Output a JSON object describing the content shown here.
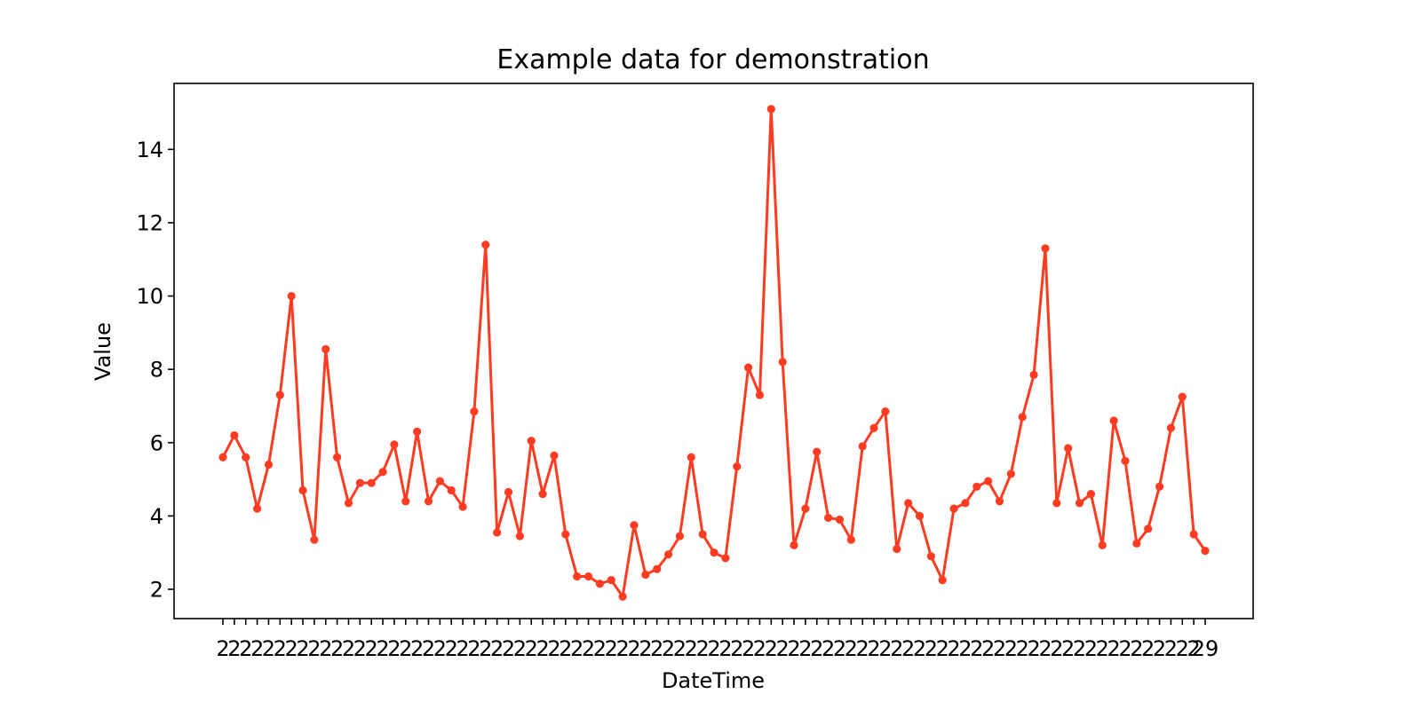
{
  "chart_data": {
    "type": "line",
    "title": "Example data for demonstration",
    "xlabel": "DateTime",
    "ylabel": "Value",
    "ylim": [
      1.2,
      15.8
    ],
    "yticks": [
      2,
      4,
      6,
      8,
      10,
      12,
      14
    ],
    "grid": false,
    "legend": "none",
    "series_color": "#ff3b22",
    "x": [
      "2",
      "2",
      "2",
      "2",
      "2",
      "2",
      "2",
      "2",
      "2",
      "2",
      "2",
      "2",
      "2",
      "2",
      "2",
      "2",
      "2",
      "2",
      "2",
      "2",
      "2",
      "2",
      "2",
      "2",
      "2",
      "2",
      "2",
      "2",
      "2",
      "2",
      "2",
      "2",
      "2",
      "2",
      "2",
      "2",
      "2",
      "2",
      "2",
      "2",
      "2",
      "2",
      "2",
      "2",
      "2",
      "2",
      "2",
      "2",
      "2",
      "2",
      "2",
      "2",
      "2",
      "2",
      "2",
      "2",
      "2",
      "2",
      "2",
      "2",
      "2",
      "2",
      "2",
      "2",
      "2",
      "2",
      "2",
      "2",
      "2",
      "2",
      "2",
      "2",
      "2",
      "2",
      "2",
      "2",
      "2",
      "2",
      "2",
      "2",
      "2",
      "2",
      "2",
      "2",
      "2",
      "2",
      "29"
    ],
    "values": [
      5.6,
      6.2,
      5.6,
      4.2,
      5.4,
      7.3,
      10.0,
      4.7,
      3.35,
      8.55,
      5.6,
      4.35,
      4.9,
      4.9,
      5.2,
      5.95,
      4.4,
      6.3,
      4.4,
      4.95,
      4.7,
      4.25,
      6.85,
      11.4,
      3.55,
      4.65,
      3.45,
      6.05,
      4.6,
      5.65,
      3.5,
      2.35,
      2.35,
      2.15,
      2.25,
      1.8,
      3.75,
      2.4,
      2.55,
      2.95,
      3.45,
      5.6,
      3.5,
      3.0,
      2.85,
      5.35,
      8.05,
      7.3,
      15.1,
      8.2,
      3.2,
      4.2,
      5.75,
      3.95,
      3.9,
      3.35,
      5.9,
      6.4,
      6.85,
      3.1,
      4.35,
      4.0,
      2.9,
      2.25,
      4.2,
      4.35,
      4.8,
      4.95,
      4.4,
      5.15,
      6.7,
      7.85,
      11.3,
      4.35,
      5.85,
      4.35,
      4.6,
      3.2,
      6.6,
      5.5,
      3.25,
      3.65,
      4.8,
      6.4,
      7.25,
      3.5,
      3.05
    ]
  }
}
